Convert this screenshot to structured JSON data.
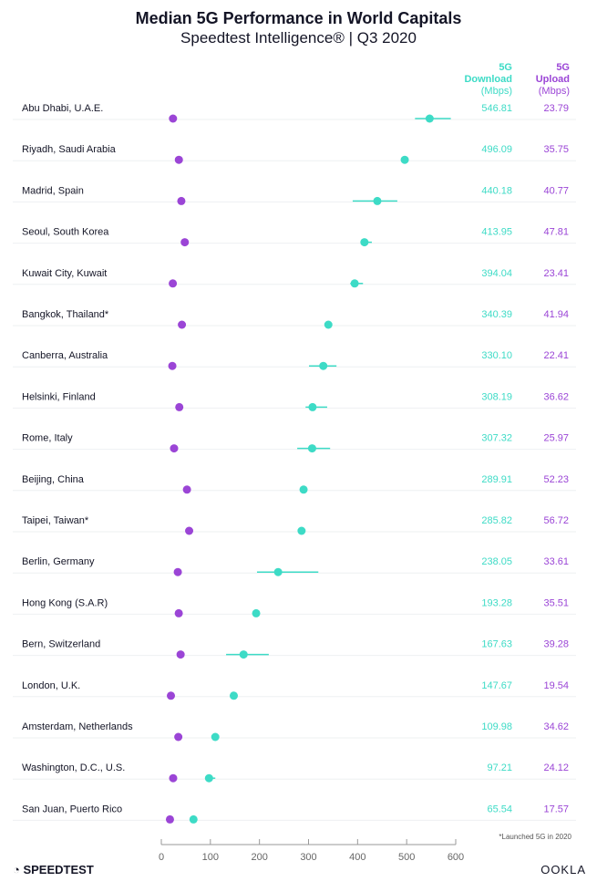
{
  "chart_data": {
    "type": "scatter",
    "title": "Median 5G Performance in World Capitals",
    "subtitle": "Speedtest Intelligence® | Q3 2020",
    "xlim": [
      0,
      600
    ],
    "xticks": [
      0,
      100,
      200,
      300,
      400,
      500,
      600
    ],
    "grid": false,
    "colors": {
      "download": "#3ddbc6",
      "upload": "#9b45d6"
    },
    "columns": {
      "download": {
        "l1": "5G",
        "l2": "Download",
        "l3": "(Mbps)"
      },
      "upload": {
        "l1": "5G",
        "l2": "Upload",
        "l3": "(Mbps)"
      }
    },
    "categories": [
      "Abu Dhabi, U.A.E.",
      "Riyadh, Saudi Arabia",
      "Madrid, Spain",
      "Seoul, South Korea",
      "Kuwait City, Kuwait",
      "Bangkok, Thailand*",
      "Canberra, Australia",
      "Helsinki, Finland",
      "Rome, Italy",
      "Beijing, China",
      "Taipei, Taiwan*",
      "Berlin, Germany",
      "Hong Kong (S.A.R)",
      "Bern, Switzerland",
      "London, U.K.",
      "Amsterdam, Netherlands",
      "Washington, D.C., U.S.",
      "San Juan, Puerto Rico"
    ],
    "series": [
      {
        "name": "5G Download",
        "values": [
          "546.81",
          "496.09",
          "440.18",
          "413.95",
          "394.04",
          "340.39",
          "330.10",
          "308.19",
          "307.32",
          "289.91",
          "285.82",
          "238.05",
          "193.28",
          "167.63",
          "147.67",
          "109.98",
          "97.21",
          "65.54"
        ],
        "intervals": [
          [
            517,
            590
          ],
          null,
          [
            390,
            481
          ],
          [
            407,
            429
          ],
          [
            385,
            411
          ],
          null,
          [
            301,
            357
          ],
          [
            294,
            338
          ],
          [
            277,
            344
          ],
          null,
          null,
          [
            195,
            320
          ],
          null,
          [
            132,
            219
          ],
          null,
          null,
          [
            89,
            110
          ],
          null
        ]
      },
      {
        "name": "5G Upload",
        "values": [
          "23.79",
          "35.75",
          "40.77",
          "47.81",
          "23.41",
          "41.94",
          "22.41",
          "36.62",
          "25.97",
          "52.23",
          "56.72",
          "33.61",
          "35.51",
          "39.28",
          "19.54",
          "34.62",
          "24.12",
          "17.57"
        ]
      }
    ],
    "footnote": "*Launched 5G in 2020"
  },
  "brand": {
    "left": "SPEEDTEST",
    "right": "OOKLA"
  }
}
